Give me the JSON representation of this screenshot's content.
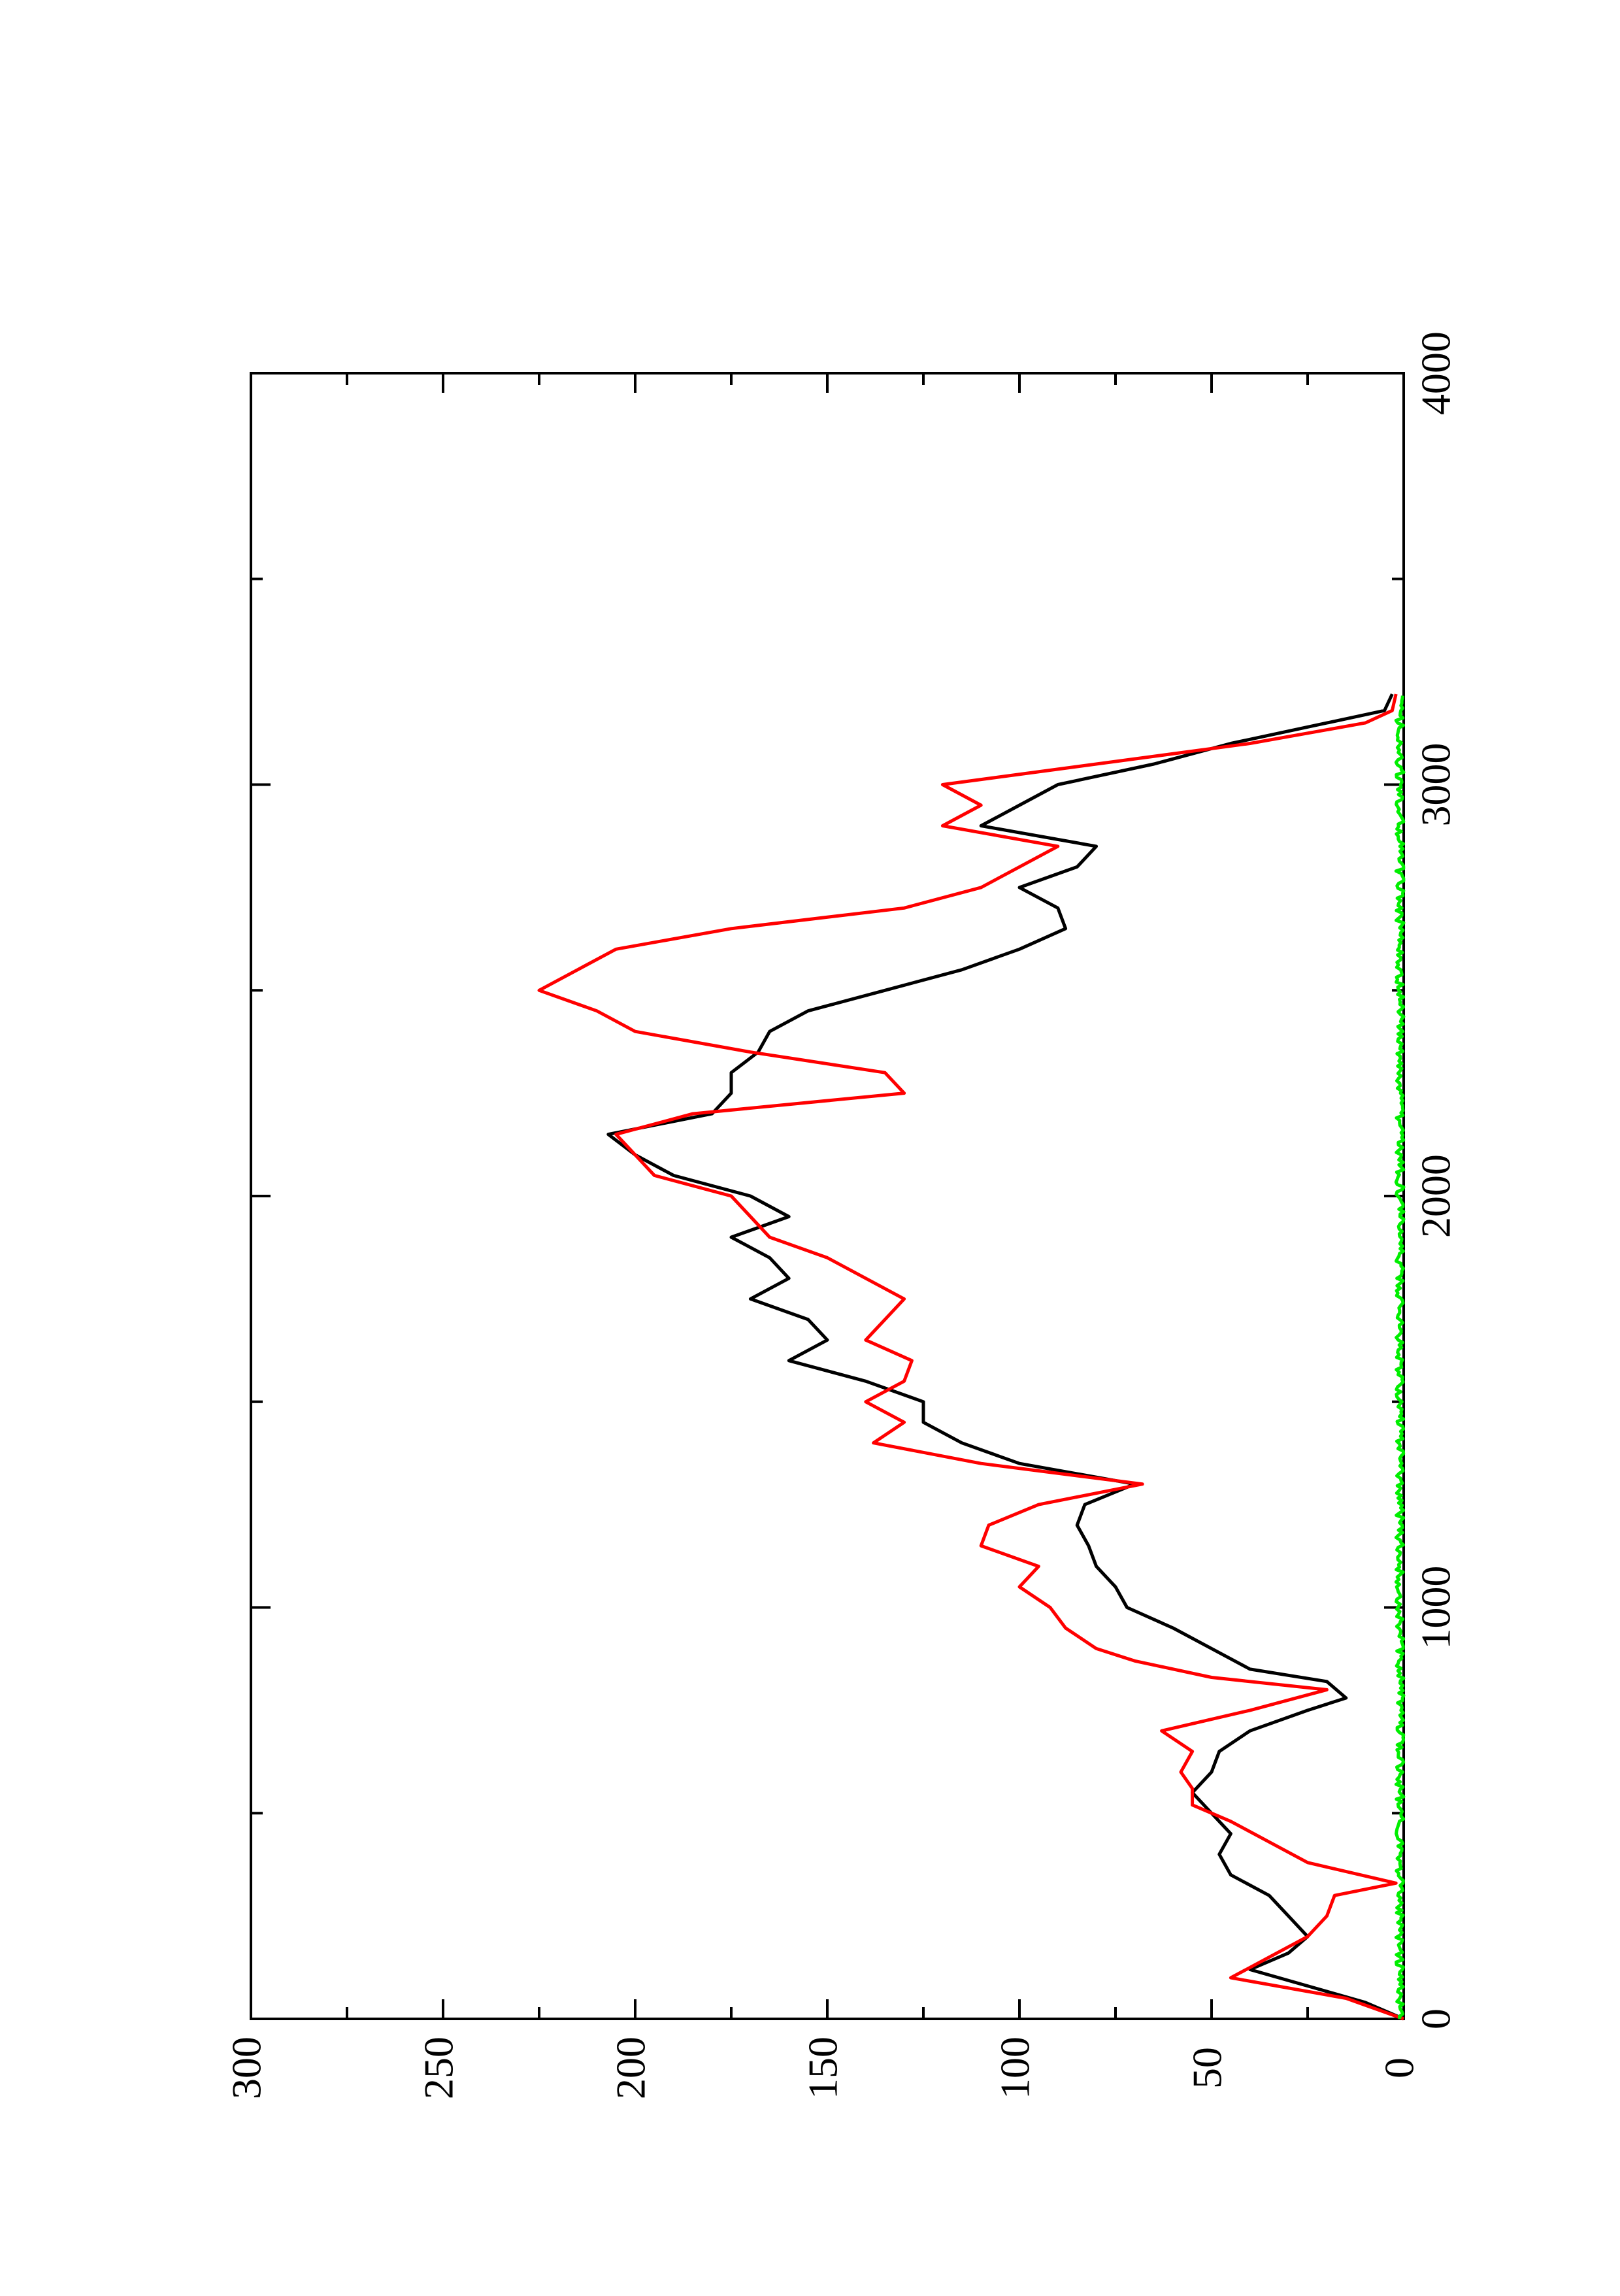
{
  "chart_data": {
    "type": "line",
    "orientation": "rotated-90-clockwise",
    "xlim": [
      0,
      4000
    ],
    "ylim": [
      0,
      300
    ],
    "x_ticks": [
      0,
      1000,
      2000,
      3000,
      4000
    ],
    "x_tick_labels": [
      "0",
      "1000",
      "2000",
      "3000",
      "4000"
    ],
    "y_ticks": [
      0,
      50,
      100,
      150,
      200,
      250,
      300
    ],
    "y_tick_labels": [
      "0",
      "50",
      "100",
      "150",
      "200",
      "250",
      "300"
    ],
    "grid": false,
    "legend": "none",
    "series": [
      {
        "color": "#000000",
        "points": [
          [
            0,
            0
          ],
          [
            40,
            10
          ],
          [
            80,
            25
          ],
          [
            120,
            40
          ],
          [
            160,
            30
          ],
          [
            200,
            25
          ],
          [
            250,
            30
          ],
          [
            300,
            35
          ],
          [
            350,
            45
          ],
          [
            400,
            48
          ],
          [
            450,
            45
          ],
          [
            500,
            50
          ],
          [
            550,
            55
          ],
          [
            600,
            50
          ],
          [
            650,
            48
          ],
          [
            700,
            40
          ],
          [
            750,
            25
          ],
          [
            780,
            15
          ],
          [
            820,
            20
          ],
          [
            850,
            40
          ],
          [
            900,
            50
          ],
          [
            950,
            60
          ],
          [
            1000,
            72
          ],
          [
            1050,
            75
          ],
          [
            1100,
            80
          ],
          [
            1150,
            82
          ],
          [
            1200,
            85
          ],
          [
            1250,
            83
          ],
          [
            1300,
            70
          ],
          [
            1350,
            100
          ],
          [
            1400,
            115
          ],
          [
            1450,
            125
          ],
          [
            1500,
            125
          ],
          [
            1550,
            140
          ],
          [
            1600,
            160
          ],
          [
            1650,
            150
          ],
          [
            1700,
            155
          ],
          [
            1750,
            170
          ],
          [
            1800,
            160
          ],
          [
            1850,
            165
          ],
          [
            1900,
            175
          ],
          [
            1950,
            160
          ],
          [
            2000,
            170
          ],
          [
            2050,
            190
          ],
          [
            2100,
            200
          ],
          [
            2150,
            207
          ],
          [
            2200,
            180
          ],
          [
            2250,
            175
          ],
          [
            2300,
            175
          ],
          [
            2350,
            168
          ],
          [
            2400,
            165
          ],
          [
            2450,
            155
          ],
          [
            2500,
            135
          ],
          [
            2550,
            115
          ],
          [
            2600,
            100
          ],
          [
            2650,
            88
          ],
          [
            2700,
            90
          ],
          [
            2750,
            100
          ],
          [
            2800,
            85
          ],
          [
            2850,
            80
          ],
          [
            2900,
            110
          ],
          [
            2950,
            100
          ],
          [
            3000,
            90
          ],
          [
            3050,
            65
          ],
          [
            3100,
            45
          ],
          [
            3150,
            20
          ],
          [
            3180,
            5
          ],
          [
            3220,
            3
          ]
        ]
      },
      {
        "color": "#ff0000",
        "points": [
          [
            0,
            0
          ],
          [
            50,
            15
          ],
          [
            100,
            45
          ],
          [
            150,
            35
          ],
          [
            200,
            25
          ],
          [
            250,
            20
          ],
          [
            300,
            18
          ],
          [
            330,
            2
          ],
          [
            380,
            25
          ],
          [
            430,
            35
          ],
          [
            480,
            45
          ],
          [
            520,
            55
          ],
          [
            560,
            55
          ],
          [
            600,
            58
          ],
          [
            650,
            55
          ],
          [
            700,
            63
          ],
          [
            750,
            40
          ],
          [
            800,
            20
          ],
          [
            830,
            50
          ],
          [
            870,
            70
          ],
          [
            900,
            80
          ],
          [
            950,
            88
          ],
          [
            1000,
            92
          ],
          [
            1050,
            100
          ],
          [
            1100,
            95
          ],
          [
            1150,
            110
          ],
          [
            1200,
            108
          ],
          [
            1250,
            95
          ],
          [
            1300,
            68
          ],
          [
            1350,
            110
          ],
          [
            1400,
            138
          ],
          [
            1450,
            130
          ],
          [
            1500,
            140
          ],
          [
            1550,
            130
          ],
          [
            1600,
            128
          ],
          [
            1650,
            140
          ],
          [
            1700,
            135
          ],
          [
            1750,
            130
          ],
          [
            1800,
            140
          ],
          [
            1850,
            150
          ],
          [
            1900,
            165
          ],
          [
            1950,
            170
          ],
          [
            2000,
            175
          ],
          [
            2050,
            195
          ],
          [
            2100,
            200
          ],
          [
            2150,
            205
          ],
          [
            2200,
            185
          ],
          [
            2250,
            130
          ],
          [
            2300,
            135
          ],
          [
            2350,
            170
          ],
          [
            2400,
            200
          ],
          [
            2450,
            210
          ],
          [
            2500,
            225
          ],
          [
            2550,
            215
          ],
          [
            2600,
            205
          ],
          [
            2650,
            175
          ],
          [
            2700,
            130
          ],
          [
            2750,
            110
          ],
          [
            2800,
            100
          ],
          [
            2850,
            90
          ],
          [
            2900,
            120
          ],
          [
            2950,
            110
          ],
          [
            3000,
            120
          ],
          [
            3050,
            80
          ],
          [
            3100,
            40
          ],
          [
            3150,
            10
          ],
          [
            3180,
            3
          ],
          [
            3220,
            2
          ]
        ]
      },
      {
        "color": "#00ee00",
        "noise_amplitude": 2,
        "x_range": [
          0,
          3220
        ]
      }
    ]
  }
}
